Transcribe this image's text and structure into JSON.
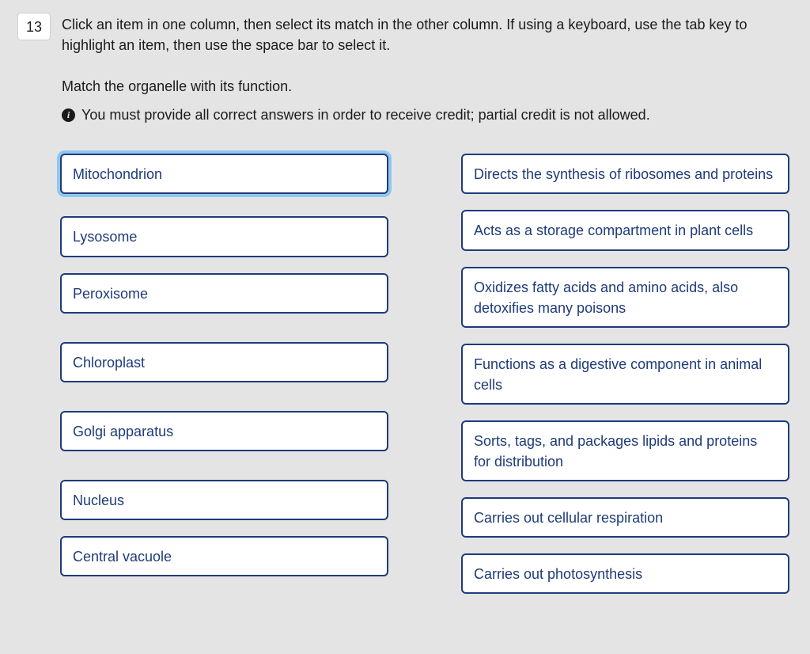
{
  "question": {
    "number": "13",
    "instructions": "Click an item in one column, then select its match in the other column. If using a keyboard, use the tab key to highlight an item, then use the space bar to select it.",
    "prompt": "Match the organelle with its function.",
    "credit_note": "You must provide all correct answers in order to receive credit; partial credit is not allowed."
  },
  "style": {
    "background_color": "#e4e4e5",
    "card_bg": "#ffffff",
    "card_border_color": "#1e3b7a",
    "card_text_color": "#1e3b7a",
    "card_border_radius": 6,
    "selection_glow_color": "#8fc7ee",
    "qnum_bg": "#ffffff",
    "qnum_border": "#d0d0d3",
    "info_icon_bg": "#1a1a1a",
    "info_icon_fg": "#e5e5e6",
    "font_size": 18,
    "column_gap": 92,
    "left_indent": 54
  },
  "left_column": {
    "selected_index": 0,
    "gaps": [
      28,
      20,
      36,
      36,
      36,
      20
    ],
    "items": [
      {
        "label": "Mitochondrion"
      },
      {
        "label": "Lysosome"
      },
      {
        "label": "Peroxisome"
      },
      {
        "label": "Chloroplast"
      },
      {
        "label": "Golgi apparatus"
      },
      {
        "label": "Nucleus"
      },
      {
        "label": "Central vacuole"
      }
    ]
  },
  "right_column": {
    "selected_index": -1,
    "gaps": [
      20,
      20,
      20,
      20,
      20,
      20
    ],
    "items": [
      {
        "label": "Directs the synthesis of ribosomes and proteins"
      },
      {
        "label": "Acts as a storage compartment in plant cells"
      },
      {
        "label": "Oxidizes fatty acids and amino acids, also detoxifies many poisons"
      },
      {
        "label": "Functions as a digestive component in animal cells"
      },
      {
        "label": "Sorts, tags, and packages lipids and proteins for distribution"
      },
      {
        "label": "Carries out cellular respiration"
      },
      {
        "label": "Carries out photosynthesis"
      }
    ]
  }
}
